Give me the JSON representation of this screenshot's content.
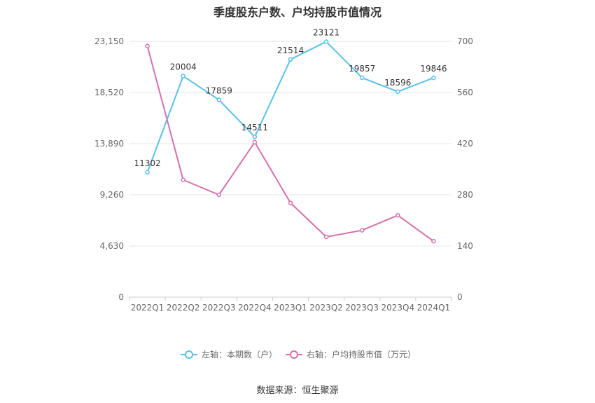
{
  "chart_data": {
    "type": "line",
    "title": "季度股东户数、户均持股市值情况",
    "categories": [
      "2022Q1",
      "2022Q2",
      "2022Q3",
      "2022Q4",
      "2023Q1",
      "2023Q2",
      "2023Q3",
      "2023Q4",
      "2024Q1"
    ],
    "left_axis": {
      "ylim": [
        0,
        23150
      ],
      "ticks": [
        "0",
        "4,630",
        "9,260",
        "13,890",
        "18,520",
        "23,150"
      ]
    },
    "right_axis": {
      "ylim": [
        0,
        700
      ],
      "ticks": [
        "0",
        "140",
        "280",
        "420",
        "560",
        "700"
      ]
    },
    "series": [
      {
        "name": "左轴：本期数（户）",
        "axis": "left",
        "color": "#5bc0eb",
        "values": [
          11302,
          20004,
          17859,
          14511,
          21514,
          23121,
          19857,
          18596,
          19846
        ],
        "labels": [
          "11302",
          "20004",
          "17859",
          "14511",
          "21514",
          "23121",
          "19857",
          "18596",
          "19846"
        ]
      },
      {
        "name": "右轴：户均持股市值（万元）",
        "axis": "right",
        "color": "#d770ad",
        "values": [
          687,
          321,
          280,
          424,
          258,
          165,
          183,
          224,
          153
        ]
      }
    ],
    "grid": true,
    "legend_position": "bottom"
  },
  "footer": {
    "source": "数据来源：恒生聚源"
  }
}
